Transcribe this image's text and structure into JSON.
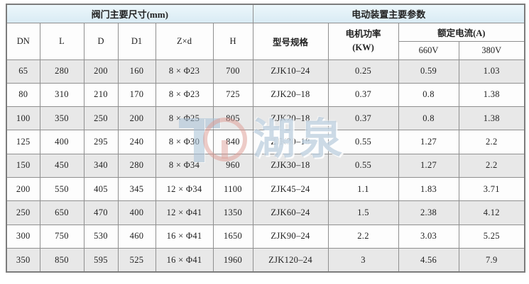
{
  "table": {
    "group_headers": {
      "dimensions": "阀门主要尺寸(mm)",
      "electric": "电动装置主要参数"
    },
    "columns": {
      "dn": "DN",
      "l": "L",
      "d": "D",
      "d1": "D1",
      "zxd": "Z×d",
      "h": "H",
      "model": "型号规格",
      "power_line1": "电机功率",
      "power_line2": "(KW)",
      "rated_current": "额定电流(A)",
      "v660": "660V",
      "v380": "380V"
    },
    "rows": [
      [
        "65",
        "280",
        "200",
        "160",
        "8 × Φ23",
        "700",
        "ZJK10–24",
        "0.25",
        "0.59",
        "1.03"
      ],
      [
        "80",
        "310",
        "210",
        "170",
        "8 × Φ23",
        "725",
        "ZJK20–18",
        "0.37",
        "0.8",
        "1.38"
      ],
      [
        "100",
        "350",
        "250",
        "200",
        "8 × Φ25",
        "805",
        "ZJK20–18",
        "0.37",
        "0.8",
        "1.38"
      ],
      [
        "125",
        "400",
        "295",
        "240",
        "8 × Φ30",
        "840",
        "ZJK30–18",
        "0.55",
        "1.27",
        "2.2"
      ],
      [
        "150",
        "450",
        "340",
        "280",
        "8 × Φ34",
        "960",
        "ZJK30–18",
        "0.55",
        "1.27",
        "2.2"
      ],
      [
        "200",
        "550",
        "405",
        "345",
        "12 × Φ34",
        "1100",
        "ZJK45–24",
        "1.1",
        "1.83",
        "3.71"
      ],
      [
        "250",
        "650",
        "470",
        "400",
        "12 × Φ41",
        "1350",
        "ZJK60–24",
        "1.5",
        "2.38",
        "4.12"
      ],
      [
        "300",
        "750",
        "530",
        "460",
        "16 × Φ41",
        "1650",
        "ZJK90–24",
        "2.2",
        "3.03",
        "5.25"
      ],
      [
        "350",
        "850",
        "595",
        "525",
        "16 × Φ41",
        "1960",
        "ZJK120–24",
        "3",
        "4.56",
        "7.9"
      ]
    ]
  },
  "watermark": {
    "text": "湖泉"
  },
  "colors": {
    "header_blue": "#dcedf5",
    "row_gray": "#e8e8e8",
    "row_white": "#fdfdfd",
    "border": "#8f8f8f",
    "text": "#222222",
    "watermark_blue": "#a9c3d8",
    "watermark_red": "#dd9b93"
  }
}
